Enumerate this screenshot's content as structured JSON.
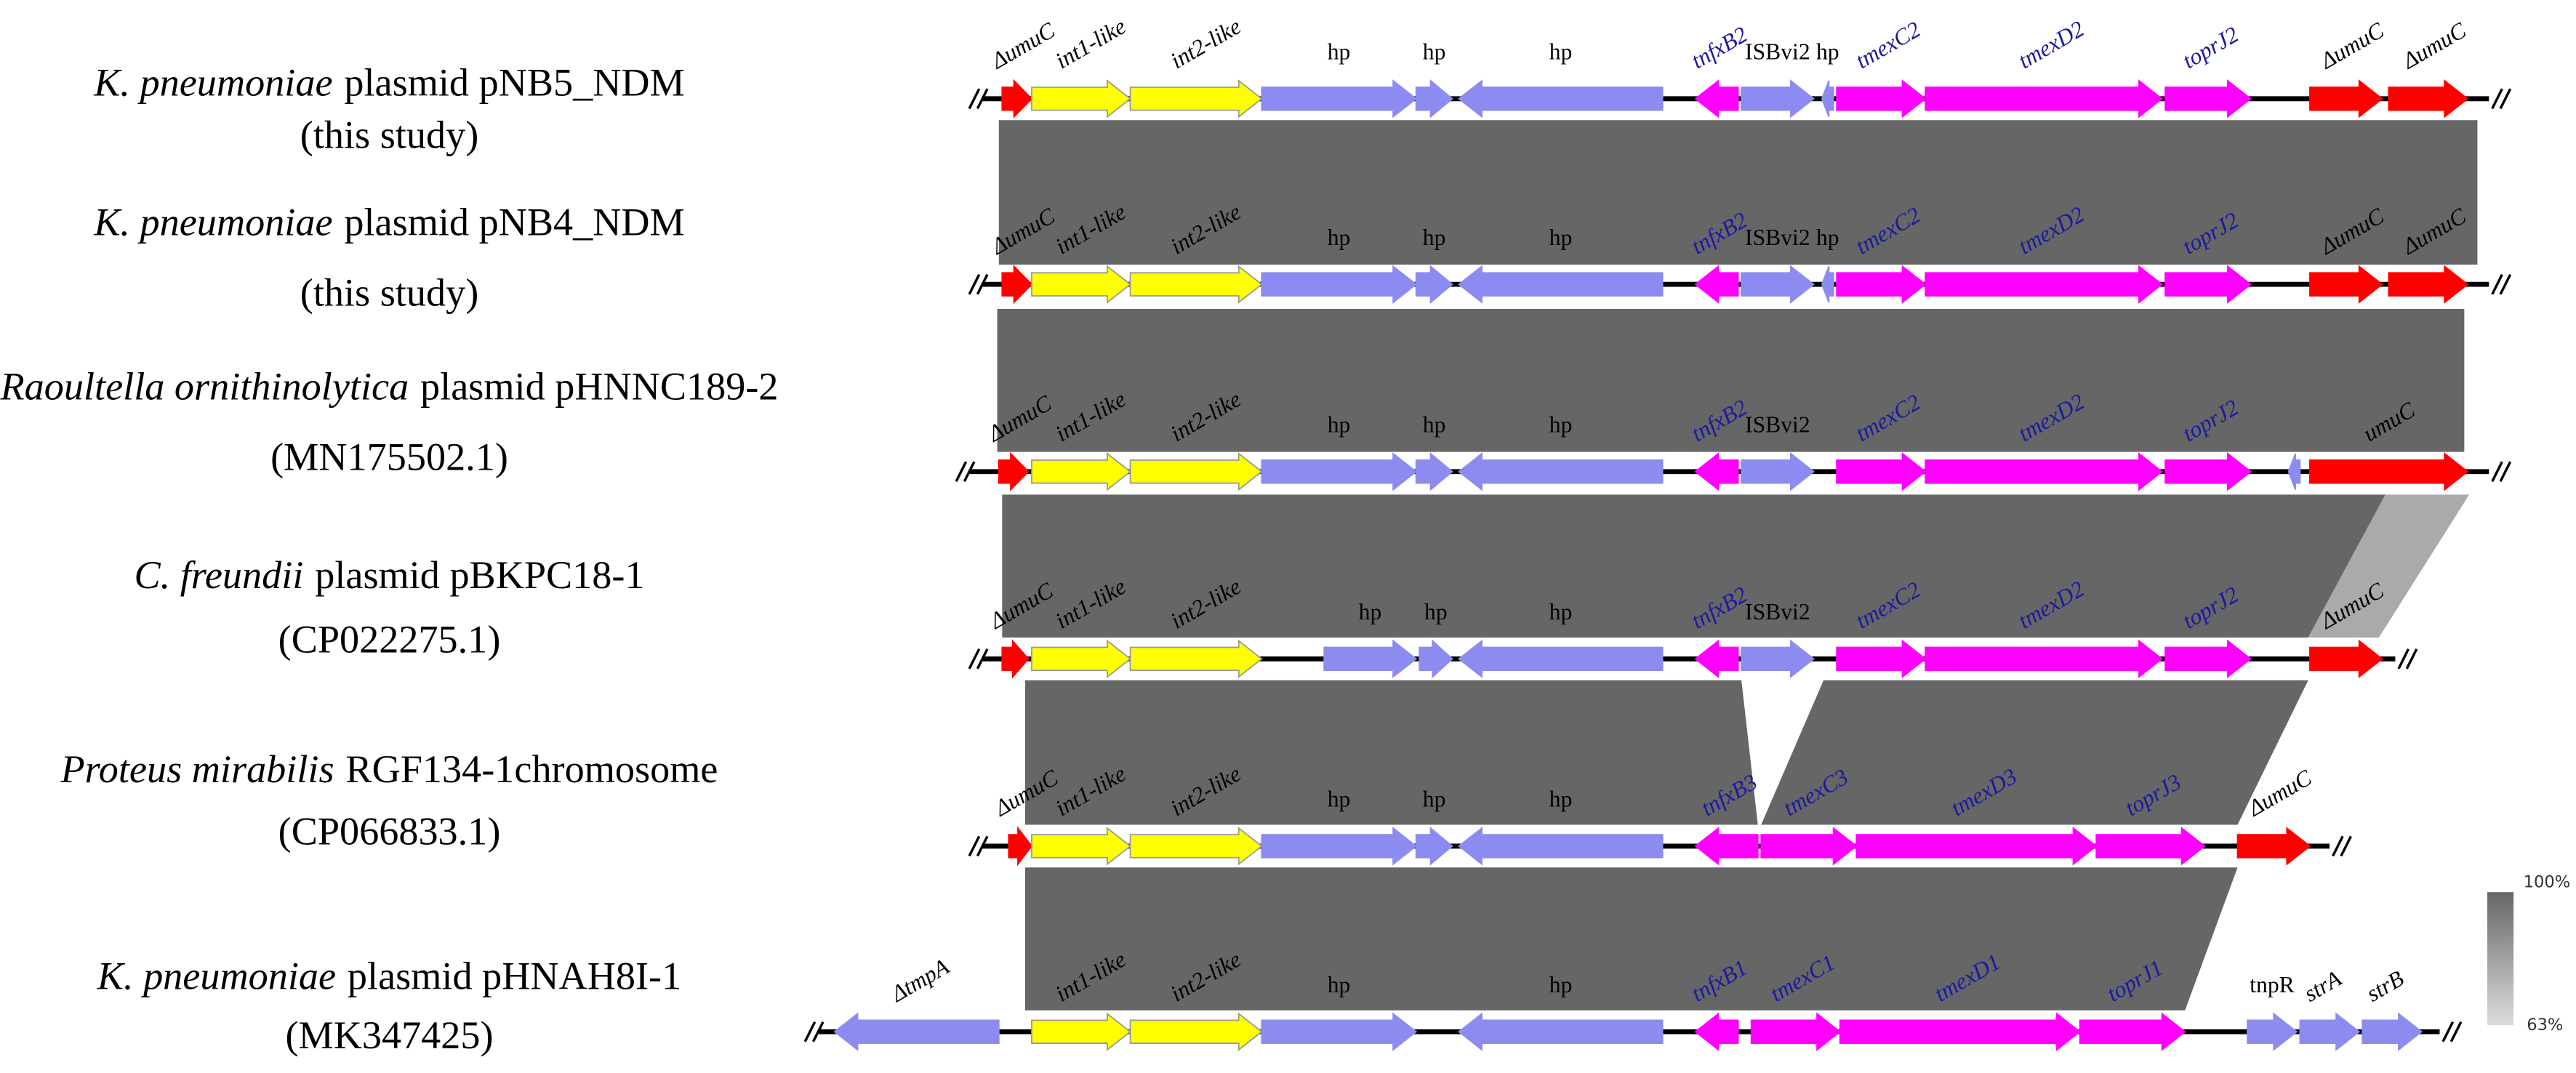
{
  "tracks": [
    {
      "species": "K. pneumoniae",
      "description": "plasmid pNB5_NDM",
      "note": "(this study)",
      "genes": [
        "ΔumuC",
        "int1-like",
        "int2-like",
        "hp",
        "hp",
        "hp",
        "tnfxB2",
        "ISBvi2",
        "hp",
        "tmexC2",
        "tmexD2",
        "toprJ2",
        "ΔumuC",
        "ΔumuC"
      ]
    },
    {
      "species": "K. pneumoniae",
      "description": "plasmid pNB4_NDM",
      "note": "(this study)",
      "genes": [
        "ΔumuC",
        "int1-like",
        "int2-like",
        "hp",
        "hp",
        "hp",
        "tnfxB2",
        "ISBvi2",
        "hp",
        "tmexC2",
        "tmexD2",
        "toprJ2",
        "ΔumuC",
        "ΔumuC"
      ]
    },
    {
      "species": "Raoultella ornithinolytica",
      "description": "plasmid pHNNC189-2",
      "note": "(MN175502.1)",
      "genes": [
        "ΔumuC",
        "int1-like",
        "int2-like",
        "hp",
        "hp",
        "hp",
        "tnfxB2",
        "ISBvi2",
        "tmexC2",
        "tmexD2",
        "toprJ2",
        "umuC"
      ]
    },
    {
      "species": "C. freundii",
      "description": "plasmid pBKPC18-1",
      "note": "(CP022275.1)",
      "genes": [
        "ΔumuC",
        "int1-like",
        "int2-like",
        "hp",
        "hp",
        "hp",
        "tnfxB2",
        "ISBvi2",
        "tmexC2",
        "tmexD2",
        "toprJ2",
        "ΔumuC"
      ]
    },
    {
      "species": "Proteus mirabilis",
      "description": "RGF134-1chromosome",
      "note": "(CP066833.1)",
      "genes": [
        "ΔumuC",
        "int1-like",
        "int2-like",
        "hp",
        "hp",
        "hp",
        "tnfxB3",
        "tmexC3",
        "tmexD3",
        "toprJ3",
        "ΔumuC"
      ]
    },
    {
      "species": "K. pneumoniae",
      "description": "plasmid pHNAH8I-1",
      "note": "(MK347425)",
      "genes": [
        "ΔtmpA",
        "int1-like",
        "int2-like",
        "hp",
        "hp",
        "tnfxB1",
        "tmexC1",
        "tmexD1",
        "toprJ1",
        "tnpR",
        "strA",
        "strB"
      ]
    }
  ],
  "legend": {
    "max": "100%",
    "min": "63%"
  }
}
